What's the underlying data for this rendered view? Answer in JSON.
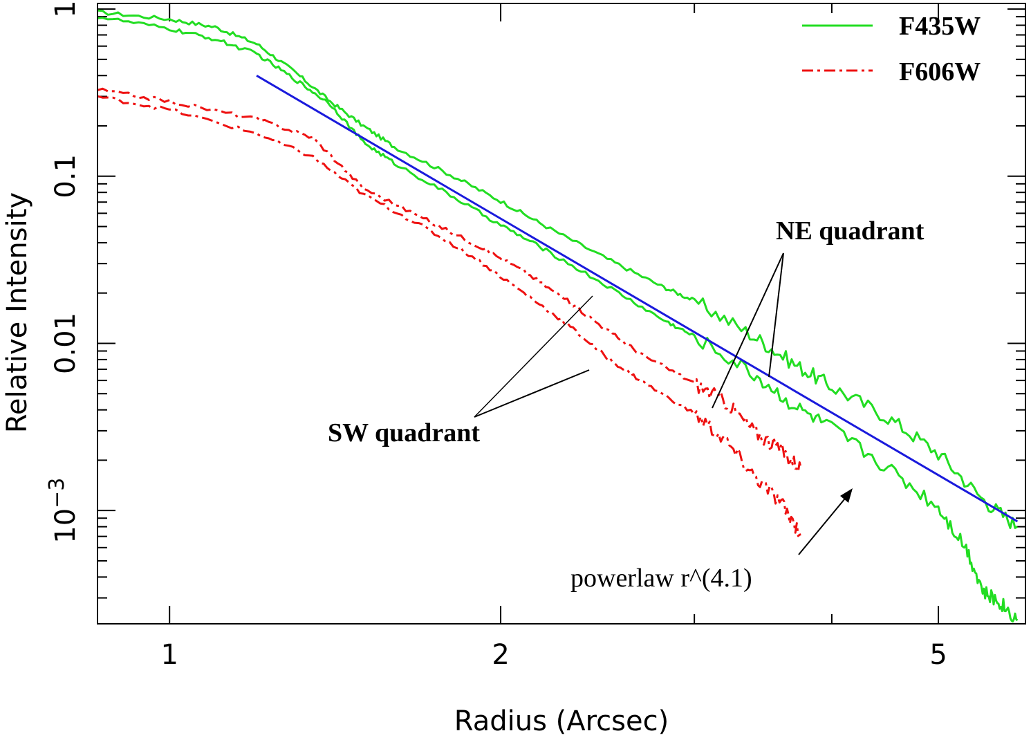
{
  "chart_data": {
    "type": "line",
    "xlabel": "Radius (Arcsec)",
    "ylabel": "Relative Intensity",
    "xscale": "log",
    "yscale": "log",
    "xlim": [
      0.86,
      6.0
    ],
    "ylim": [
      0.00021,
      1.08
    ],
    "x_ticks": [
      {
        "value": 1,
        "label": "1"
      },
      {
        "value": 2,
        "label": "2"
      },
      {
        "value": 5,
        "label": "5"
      }
    ],
    "y_ticks": [
      {
        "value": 1,
        "label": "1"
      },
      {
        "value": 0.1,
        "label": "0.1"
      },
      {
        "value": 0.01,
        "label": "0.01"
      },
      {
        "value": 0.001,
        "label_base": "10",
        "label_exp": "−3"
      }
    ],
    "legend": {
      "position": "top-right",
      "entries": [
        {
          "label": "F435W",
          "color": "#22dd22",
          "style": "solid"
        },
        {
          "label": "F606W",
          "color": "#ee1111",
          "style": "dash-dot"
        }
      ]
    },
    "series": [
      {
        "name": "F435W NE quadrant",
        "color": "#22dd22",
        "style": "solid",
        "x": [
          0.86,
          1.0,
          1.1,
          1.2,
          1.3,
          1.4,
          1.5,
          1.6,
          1.8,
          2.0,
          2.2,
          2.5,
          2.8,
          3.0,
          3.4,
          3.7,
          4.0,
          4.5,
          5.0,
          5.5,
          5.9
        ],
        "y": [
          0.96,
          0.87,
          0.78,
          0.62,
          0.42,
          0.28,
          0.2,
          0.15,
          0.102,
          0.071,
          0.05,
          0.032,
          0.022,
          0.018,
          0.011,
          0.0075,
          0.0055,
          0.0036,
          0.0022,
          0.00115,
          0.0008
        ]
      },
      {
        "name": "F435W SW quadrant",
        "color": "#22dd22",
        "style": "solid",
        "x": [
          0.86,
          1.0,
          1.1,
          1.2,
          1.3,
          1.4,
          1.5,
          1.6,
          1.8,
          2.0,
          2.2,
          2.5,
          2.8,
          3.0,
          3.4,
          3.7,
          4.0,
          4.5,
          5.0,
          5.3,
          5.5,
          5.7,
          5.9
        ],
        "y": [
          0.9,
          0.76,
          0.66,
          0.54,
          0.38,
          0.27,
          0.16,
          0.12,
          0.077,
          0.051,
          0.036,
          0.022,
          0.014,
          0.011,
          0.0065,
          0.0042,
          0.0031,
          0.0018,
          0.00105,
          0.0006,
          0.00032,
          0.00028,
          0.00022
        ]
      },
      {
        "name": "F606W NE quadrant",
        "color": "#ee1111",
        "style": "dash-dot",
        "x": [
          0.86,
          1.0,
          1.2,
          1.35,
          1.5,
          1.7,
          1.9,
          2.1,
          2.3,
          2.5,
          2.7,
          3.0,
          3.2,
          3.4,
          3.6,
          3.75
        ],
        "y": [
          0.33,
          0.28,
          0.22,
          0.17,
          0.085,
          0.056,
          0.039,
          0.027,
          0.018,
          0.012,
          0.0084,
          0.0058,
          0.0045,
          0.003,
          0.0023,
          0.0018
        ]
      },
      {
        "name": "F606W SW quadrant",
        "color": "#ee1111",
        "style": "dash-dot",
        "x": [
          0.86,
          1.0,
          1.2,
          1.35,
          1.5,
          1.7,
          1.9,
          2.1,
          2.3,
          2.5,
          2.7,
          3.0,
          3.2,
          3.4,
          3.6,
          3.75
        ],
        "y": [
          0.3,
          0.25,
          0.18,
          0.13,
          0.078,
          0.05,
          0.032,
          0.02,
          0.013,
          0.0082,
          0.0058,
          0.0038,
          0.0026,
          0.0016,
          0.0011,
          0.00072
        ]
      },
      {
        "name": "powerlaw r^(4.1)",
        "color": "#1a1adc",
        "style": "solid",
        "x": [
          1.2,
          5.9
        ],
        "y": [
          0.4,
          0.00086
        ]
      }
    ],
    "annotations": [
      {
        "text": "NE quadrant",
        "weight": "bold"
      },
      {
        "text": "SW quadrant",
        "weight": "bold"
      },
      {
        "text": "powerlaw r^(4.1)",
        "weight": "normal"
      }
    ]
  }
}
